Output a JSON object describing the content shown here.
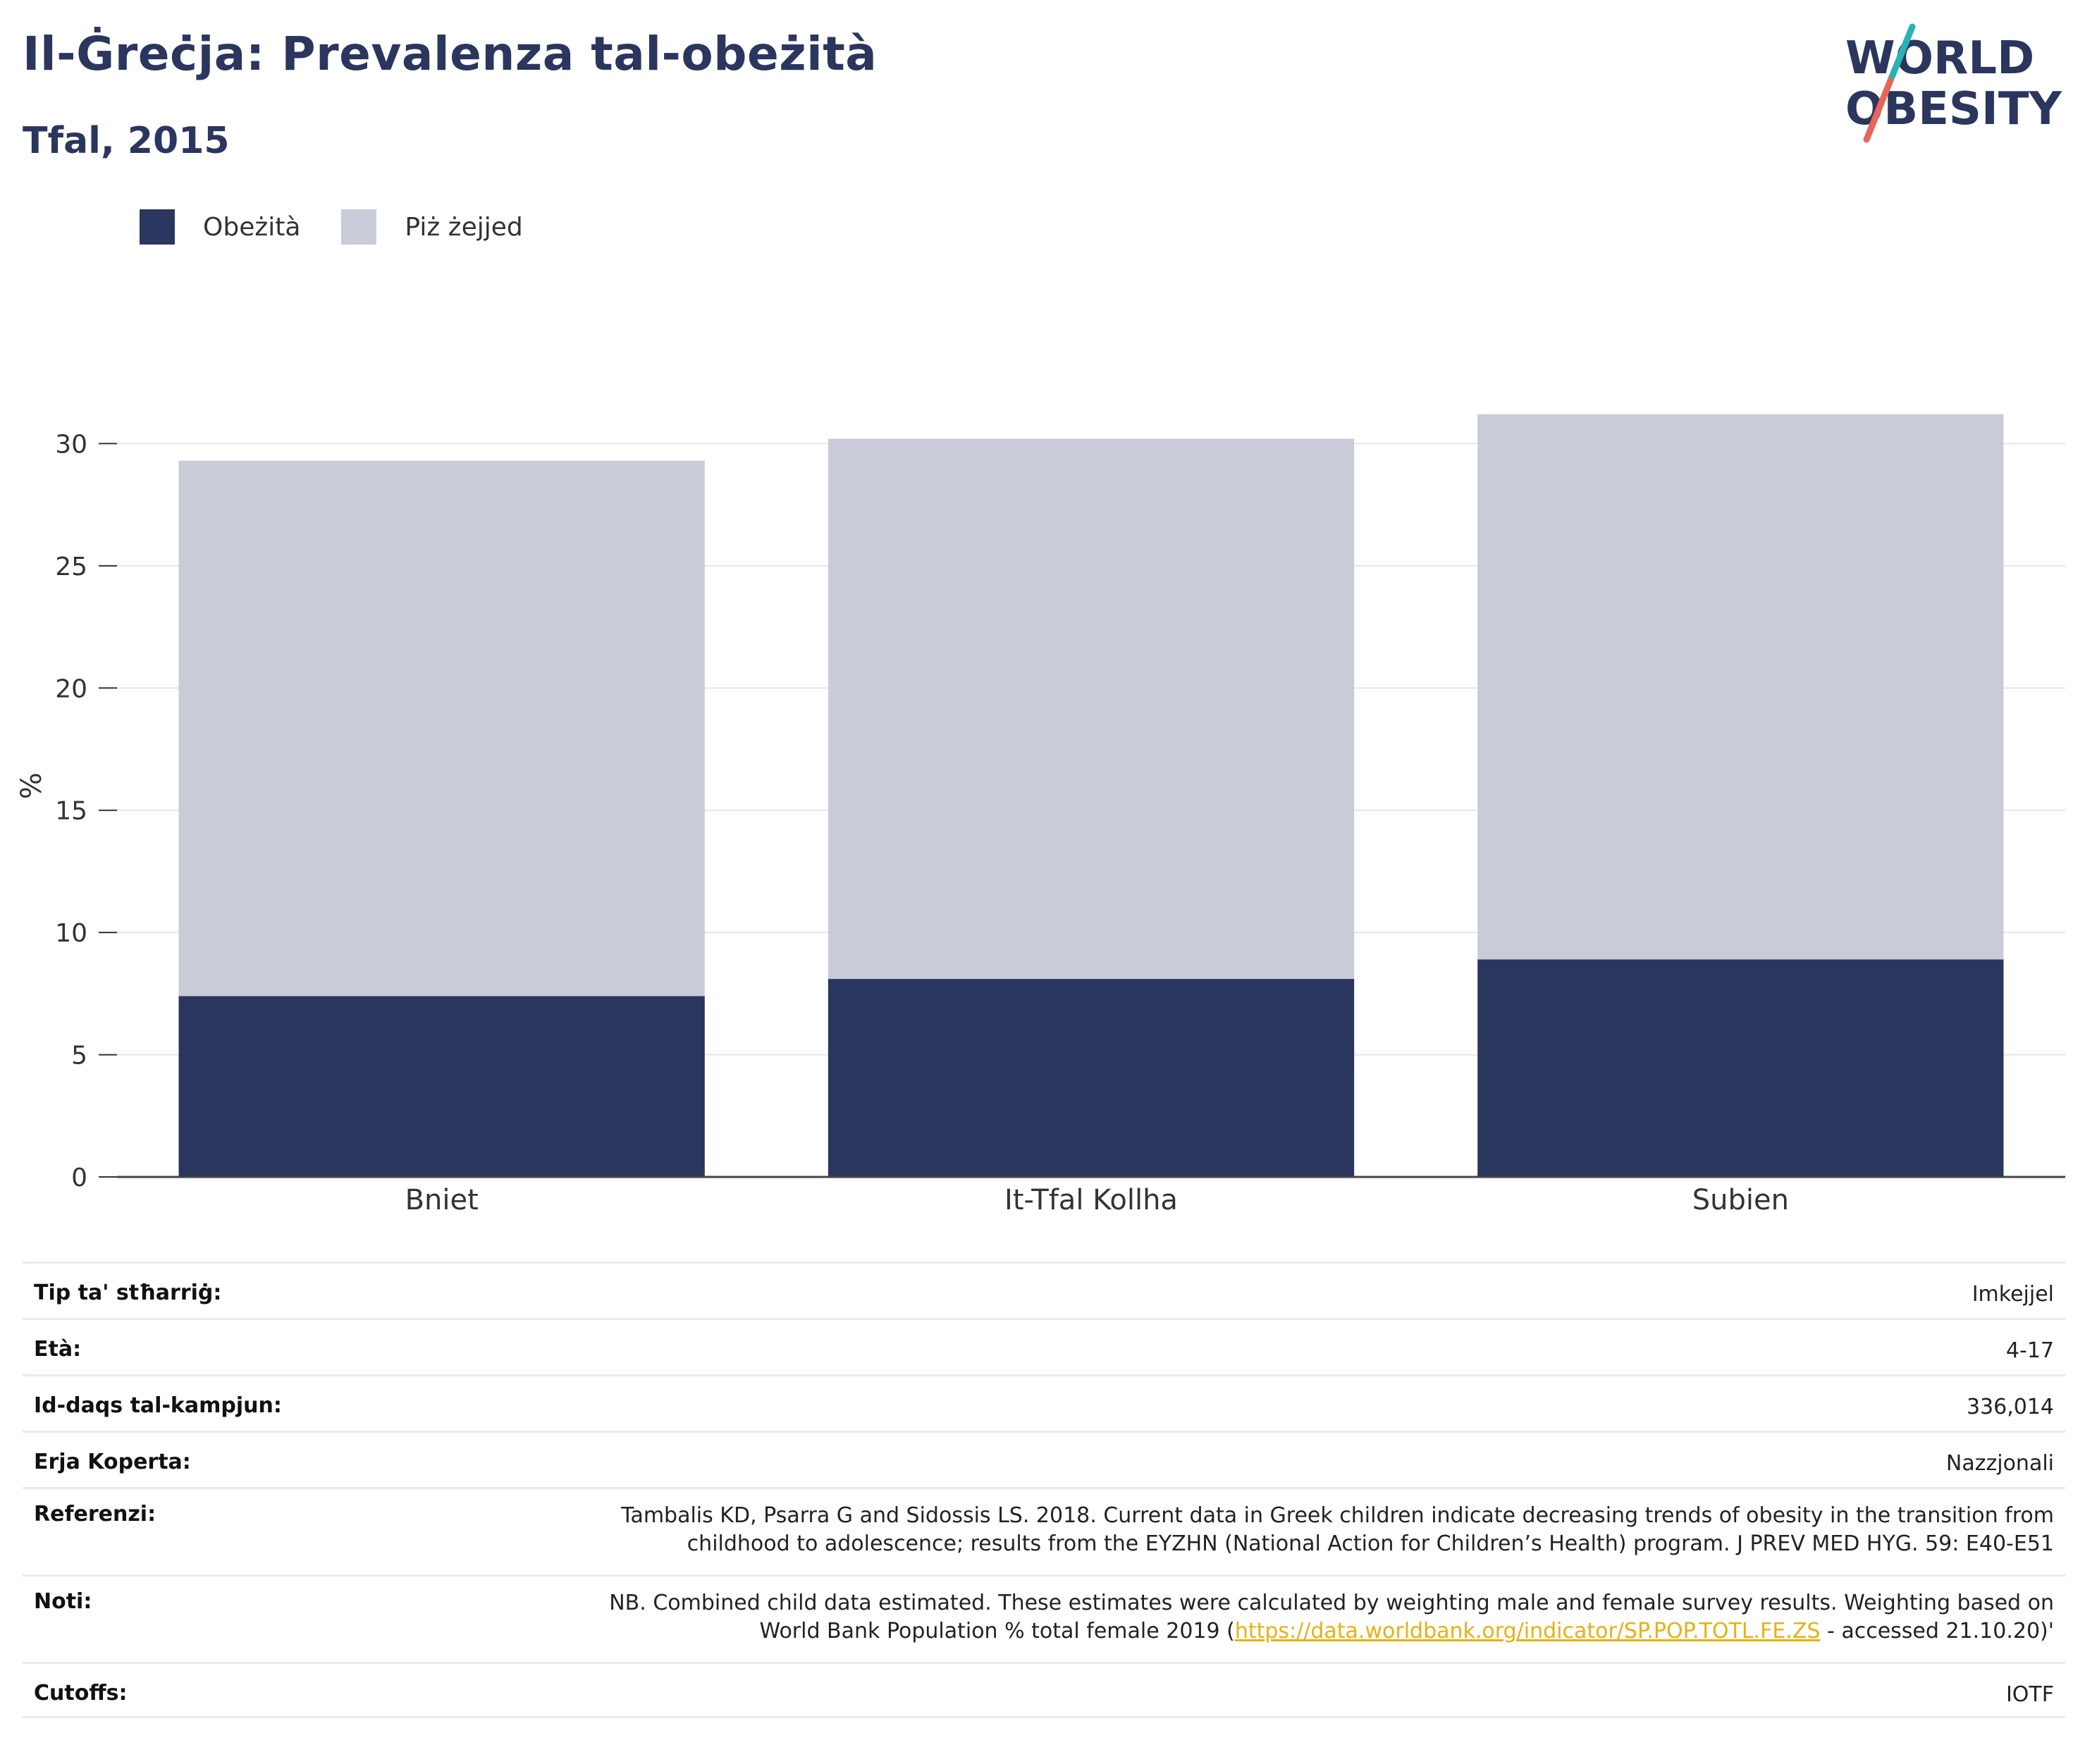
{
  "header": {
    "title": "Il-Ġreċja: Prevalenza tal-obeżità",
    "subtitle": "Tfal, 2015"
  },
  "logo": {
    "line1": "WORLD",
    "line2": "OBESITY",
    "colors": {
      "text": "#2b365f",
      "slash_top": "#2bb3b3",
      "slash_bottom": "#e8655a"
    }
  },
  "legend": [
    {
      "label": "Obeżità",
      "color": "#2b365f"
    },
    {
      "label": "Piż żejjed",
      "color": "#c9ccd8"
    }
  ],
  "chart_data": {
    "type": "bar",
    "stacked": true,
    "categories": [
      "Bniet",
      "It-Tfal Kollha",
      "Subien"
    ],
    "series": [
      {
        "name": "Obeżità",
        "values": [
          7.4,
          8.1,
          8.9
        ],
        "color": "#2b365f"
      },
      {
        "name": "Piż żejjed",
        "values": [
          21.9,
          22.1,
          22.3
        ],
        "color": "#c9ccd8"
      }
    ],
    "ylabel": "%",
    "ylim": [
      0,
      32
    ],
    "yticks": [
      0,
      5,
      10,
      15,
      20,
      25,
      30
    ],
    "grid": true
  },
  "info": [
    {
      "label": "Tip ta' stħarriġ:",
      "value": [
        "Imkejjel"
      ]
    },
    {
      "label": "Età:",
      "value": [
        "4-17"
      ]
    },
    {
      "label": "Id-daqs tal-kampjun:",
      "value": [
        "336,014"
      ]
    },
    {
      "label": "Erja Koperta:",
      "value": [
        "Nazzjonali"
      ]
    },
    {
      "label": "Referenzi:",
      "value": [
        "Tambalis KD, Psarra G and Sidossis LS. 2018. Current data in Greek children indicate decreasing trends of obesity in the transition from",
        "childhood to adolescence; results from the EYZHN (National Action for Children’s Health) program. J PREV MED HYG. 59: E40-E51"
      ]
    },
    {
      "label": "Noti:",
      "value": [
        "NB. Combined child data estimated. These estimates were calculated by weighting male and female survey results. Weighting based on"
      ],
      "value_line2": {
        "pre": "World Bank Population % total female 2019 (",
        "link": "https://data.worldbank.org/indicator/SP.POP.TOTL.FE.ZS",
        "post": " - accessed 21.10.20)'"
      }
    },
    {
      "label": "Cutoffs:",
      "value": [
        "IOTF"
      ]
    }
  ]
}
